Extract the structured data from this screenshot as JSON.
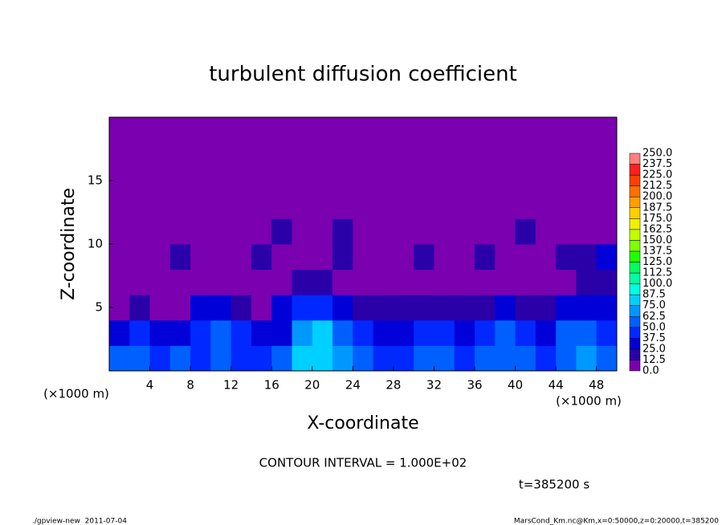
{
  "chart_data": {
    "type": "contour",
    "title": "turbulent diffusion coefficient",
    "x_label": "X-coordinate",
    "y_label": "Z-coordinate",
    "x_unit": "(×1000 m)",
    "y_unit": "(×1000 m)",
    "contour_interval": "CONTOUR INTERVAL = 1.000E+02",
    "time_label": "t=385200 s",
    "footer_left": "./gpview-new  2011-07-04",
    "footer_right": "MarsCond_Km.nc@Km,x=0:50000,z=0:20000,t=385200",
    "xlim": [
      0,
      50
    ],
    "ylim": [
      0,
      20
    ],
    "xticks": [
      4,
      8,
      12,
      16,
      20,
      24,
      28,
      32,
      36,
      40,
      44,
      48
    ],
    "yticks": [
      5,
      10,
      15
    ],
    "x": [
      1,
      3,
      5,
      7,
      9,
      11,
      13,
      15,
      17,
      19,
      21,
      23,
      25,
      27,
      29,
      31,
      33,
      35,
      37,
      39,
      41,
      43,
      45,
      47,
      49
    ],
    "z": [
      1,
      3,
      5,
      7,
      9,
      11,
      13,
      15,
      17,
      19
    ],
    "values": [
      [
        55,
        60,
        45,
        50,
        40,
        55,
        45,
        40,
        50,
        80,
        85,
        70,
        50,
        45,
        40,
        55,
        50,
        45,
        50,
        60,
        55,
        45,
        60,
        70,
        55
      ],
      [
        35,
        45,
        30,
        30,
        45,
        55,
        40,
        30,
        35,
        70,
        75,
        60,
        40,
        35,
        30,
        40,
        45,
        35,
        40,
        50,
        45,
        35,
        50,
        55,
        45
      ],
      [
        10,
        15,
        10,
        10,
        30,
        35,
        20,
        10,
        25,
        40,
        40,
        30,
        15,
        15,
        15,
        15,
        20,
        15,
        15,
        25,
        20,
        20,
        30,
        35,
        30
      ],
      [
        5,
        5,
        5,
        5,
        5,
        8,
        5,
        5,
        5,
        20,
        15,
        8,
        5,
        5,
        5,
        5,
        5,
        5,
        5,
        5,
        5,
        8,
        10,
        15,
        15
      ],
      [
        8,
        10,
        5,
        15,
        10,
        8,
        10,
        15,
        12,
        10,
        8,
        15,
        10,
        8,
        12,
        15,
        10,
        8,
        15,
        10,
        12,
        10,
        15,
        20,
        25
      ],
      [
        5,
        8,
        10,
        5,
        8,
        5,
        8,
        5,
        15,
        10,
        5,
        15,
        8,
        5,
        10,
        5,
        12,
        8,
        5,
        8,
        15,
        10,
        8,
        5,
        10
      ],
      [
        5,
        5,
        5,
        5,
        5,
        5,
        5,
        5,
        5,
        5,
        5,
        5,
        5,
        10,
        5,
        5,
        5,
        5,
        5,
        5,
        5,
        5,
        5,
        5,
        5
      ],
      [
        5,
        5,
        5,
        5,
        5,
        5,
        5,
        5,
        5,
        5,
        5,
        5,
        5,
        5,
        5,
        5,
        5,
        5,
        5,
        5,
        5,
        5,
        5,
        5,
        5
      ],
      [
        5,
        5,
        5,
        5,
        5,
        5,
        5,
        5,
        5,
        5,
        5,
        5,
        5,
        5,
        5,
        5,
        5,
        5,
        5,
        5,
        5,
        5,
        5,
        5,
        5
      ],
      [
        5,
        5,
        5,
        5,
        5,
        5,
        5,
        5,
        5,
        5,
        5,
        5,
        5,
        5,
        5,
        5,
        5,
        5,
        5,
        5,
        5,
        5,
        5,
        5,
        5
      ]
    ],
    "levels": [
      {
        "value": 0,
        "label": "0.0"
      },
      12.5,
      {
        "value": 25,
        "label": "25.0"
      },
      37.5,
      {
        "value": 50,
        "label": "50.0"
      },
      62.5,
      {
        "value": 75,
        "label": "75.0"
      },
      87.5,
      {
        "value": 100,
        "label": "100.0"
      },
      112.5,
      {
        "value": 125,
        "label": "125.0"
      },
      137.5,
      {
        "value": 150,
        "label": "150.0"
      },
      162.5,
      {
        "value": 175,
        "label": "175.0"
      },
      187.5,
      {
        "value": 200,
        "label": "200.0"
      },
      212.5,
      {
        "value": 225,
        "label": "225.0"
      },
      237.5,
      {
        "value": 250,
        "label": "250.0"
      }
    ],
    "colors": [
      "#7a00b0",
      "#2a00a8",
      "#0000d8",
      "#0028ff",
      "#0060ff",
      "#0098ff",
      "#00d0ff",
      "#00ffe0",
      "#00ffa0",
      "#00ff60",
      "#20ff00",
      "#80ff00",
      "#c0ff00",
      "#f0f000",
      "#ffd000",
      "#ffa000",
      "#ff7000",
      "#ff4000",
      "#ff2020",
      "#ff8080"
    ]
  }
}
